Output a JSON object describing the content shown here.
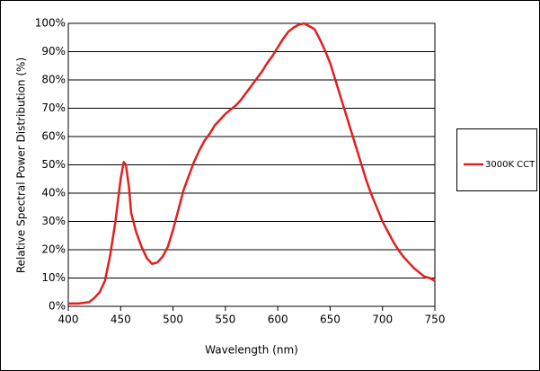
{
  "chart_data": {
    "type": "line",
    "x_label": "Wavelength (nm)",
    "y_label": "Relative Spectral Power Distribution (%)",
    "x": [
      400,
      410,
      420,
      425,
      430,
      435,
      440,
      445,
      450,
      453,
      455,
      458,
      460,
      465,
      470,
      475,
      480,
      485,
      490,
      495,
      500,
      505,
      510,
      515,
      520,
      525,
      530,
      535,
      540,
      545,
      550,
      555,
      560,
      565,
      570,
      575,
      580,
      585,
      590,
      595,
      600,
      605,
      610,
      615,
      620,
      625,
      630,
      635,
      640,
      645,
      650,
      655,
      660,
      665,
      670,
      675,
      680,
      685,
      690,
      695,
      700,
      705,
      710,
      715,
      720,
      725,
      730,
      735,
      740,
      745,
      750
    ],
    "series": [
      {
        "name": "3000K CCT",
        "color": "#e02020",
        "values": [
          1,
          1,
          1.5,
          3,
          5,
          9,
          18,
          30,
          45,
          51,
          50,
          42,
          33,
          26,
          21,
          17,
          15,
          15.5,
          17.5,
          21,
          27,
          34,
          41,
          46,
          51,
          55,
          58.5,
          61,
          64,
          66,
          68,
          69.5,
          71,
          73,
          75.5,
          78,
          80.5,
          83,
          86,
          88.5,
          91.5,
          94.5,
          97,
          98.5,
          99.5,
          100,
          99,
          98,
          94.5,
          90.5,
          86,
          80,
          74,
          68,
          62,
          56,
          50,
          44,
          39,
          34.5,
          30,
          26.5,
          23,
          20,
          17.5,
          15.5,
          13.5,
          12,
          10.5,
          10,
          9
        ]
      }
    ],
    "xlim": [
      400,
      750
    ],
    "xticks": [
      400,
      450,
      500,
      550,
      600,
      650,
      700,
      750
    ],
    "ylim": [
      0,
      100
    ],
    "yticks": [
      {
        "value": 0,
        "label": "0%"
      },
      {
        "value": 10,
        "label": "10%"
      },
      {
        "value": 20,
        "label": "20%"
      },
      {
        "value": 30,
        "label": "30%"
      },
      {
        "value": 40,
        "label": "40%"
      },
      {
        "value": 50,
        "label": "50%"
      },
      {
        "value": 60,
        "label": "60%"
      },
      {
        "value": 70,
        "label": "70%"
      },
      {
        "value": 80,
        "label": "80%"
      },
      {
        "value": 90,
        "label": "90%"
      },
      {
        "value": 100,
        "label": "100%"
      }
    ],
    "grid": true,
    "legend": "right"
  }
}
